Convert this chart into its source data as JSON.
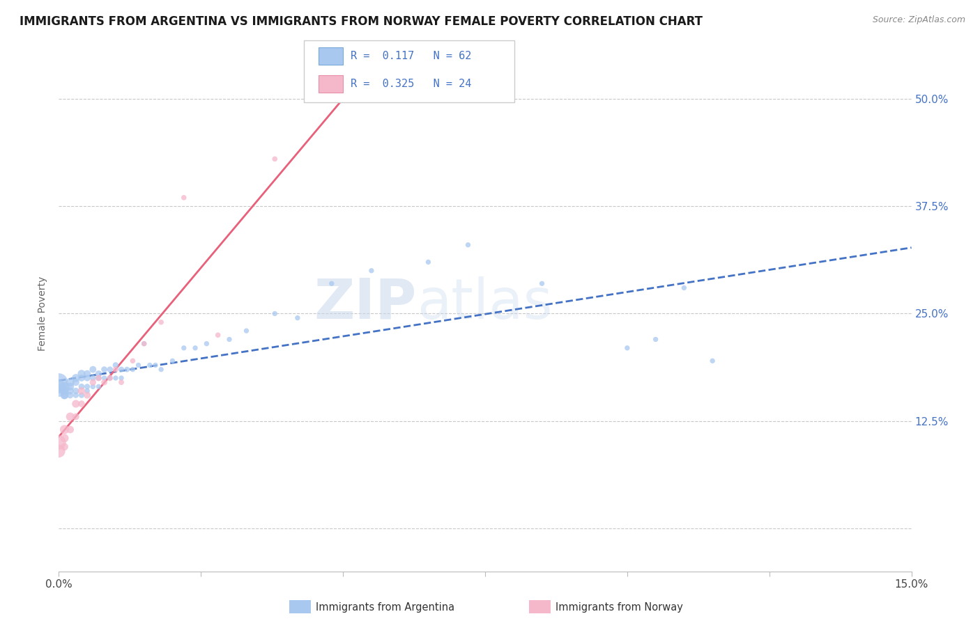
{
  "title": "IMMIGRANTS FROM ARGENTINA VS IMMIGRANTS FROM NORWAY FEMALE POVERTY CORRELATION CHART",
  "source": "Source: ZipAtlas.com",
  "ylabel": "Female Poverty",
  "y_ticks": [
    0.0,
    0.125,
    0.25,
    0.375,
    0.5
  ],
  "y_tick_labels": [
    "",
    "12.5%",
    "25.0%",
    "37.5%",
    "50.0%"
  ],
  "x_range": [
    0.0,
    0.15
  ],
  "y_range": [
    -0.05,
    0.55
  ],
  "legend_r1": "R =  0.117",
  "legend_n1": "N = 62",
  "legend_r2": "R =  0.325",
  "legend_n2": "N = 24",
  "color_argentina": "#A8C8F0",
  "color_norway": "#F5B8CB",
  "color_argentina_line": "#4472C4",
  "color_norway_line": "#E8607A",
  "watermark_zip": "ZIP",
  "watermark_atlas": "atlas",
  "argentina_x": [
    0.0,
    0.0,
    0.0,
    0.001,
    0.001,
    0.001,
    0.001,
    0.001,
    0.002,
    0.002,
    0.002,
    0.002,
    0.003,
    0.003,
    0.003,
    0.003,
    0.004,
    0.004,
    0.004,
    0.004,
    0.005,
    0.005,
    0.005,
    0.005,
    0.006,
    0.006,
    0.006,
    0.007,
    0.007,
    0.007,
    0.008,
    0.008,
    0.009,
    0.009,
    0.01,
    0.01,
    0.011,
    0.011,
    0.012,
    0.013,
    0.014,
    0.015,
    0.016,
    0.017,
    0.018,
    0.02,
    0.022,
    0.024,
    0.026,
    0.03,
    0.033,
    0.038,
    0.042,
    0.048,
    0.055,
    0.065,
    0.072,
    0.085,
    0.1,
    0.105,
    0.11,
    0.115
  ],
  "argentina_y": [
    0.17,
    0.165,
    0.16,
    0.165,
    0.16,
    0.155,
    0.16,
    0.155,
    0.17,
    0.165,
    0.16,
    0.155,
    0.175,
    0.17,
    0.16,
    0.155,
    0.18,
    0.175,
    0.165,
    0.155,
    0.18,
    0.175,
    0.165,
    0.16,
    0.185,
    0.175,
    0.165,
    0.18,
    0.175,
    0.165,
    0.185,
    0.175,
    0.185,
    0.175,
    0.19,
    0.175,
    0.185,
    0.175,
    0.185,
    0.185,
    0.19,
    0.215,
    0.19,
    0.19,
    0.185,
    0.195,
    0.21,
    0.21,
    0.215,
    0.22,
    0.23,
    0.25,
    0.245,
    0.285,
    0.3,
    0.31,
    0.33,
    0.285,
    0.21,
    0.22,
    0.28,
    0.195
  ],
  "argentina_sizes": [
    350,
    200,
    150,
    100,
    80,
    70,
    65,
    60,
    80,
    65,
    55,
    45,
    70,
    55,
    45,
    35,
    65,
    50,
    40,
    35,
    55,
    45,
    35,
    30,
    50,
    40,
    30,
    45,
    35,
    28,
    40,
    30,
    38,
    28,
    38,
    28,
    35,
    28,
    32,
    28,
    28,
    28,
    28,
    28,
    28,
    28,
    28,
    28,
    28,
    28,
    28,
    28,
    28,
    28,
    28,
    28,
    28,
    28,
    28,
    28,
    28,
    28
  ],
  "norway_x": [
    0.0,
    0.0,
    0.001,
    0.001,
    0.001,
    0.002,
    0.002,
    0.003,
    0.003,
    0.004,
    0.004,
    0.005,
    0.006,
    0.007,
    0.008,
    0.009,
    0.01,
    0.011,
    0.013,
    0.015,
    0.018,
    0.022,
    0.028,
    0.038
  ],
  "norway_y": [
    0.1,
    0.09,
    0.115,
    0.105,
    0.095,
    0.13,
    0.115,
    0.145,
    0.13,
    0.16,
    0.145,
    0.155,
    0.17,
    0.175,
    0.17,
    0.175,
    0.185,
    0.17,
    0.195,
    0.215,
    0.24,
    0.385,
    0.225,
    0.43
  ],
  "norway_sizes": [
    220,
    180,
    90,
    75,
    60,
    75,
    60,
    65,
    50,
    60,
    48,
    50,
    45,
    42,
    40,
    38,
    35,
    32,
    30,
    30,
    30,
    30,
    30,
    30
  ]
}
